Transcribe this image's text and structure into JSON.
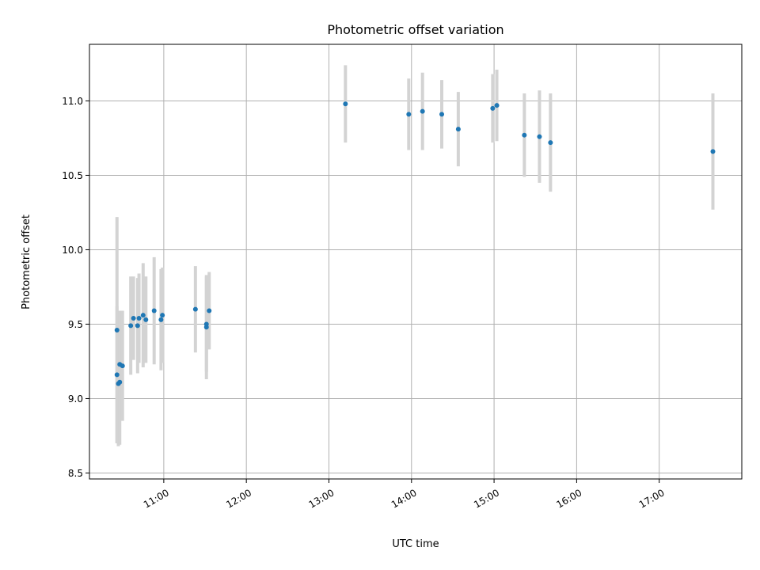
{
  "chart_data": {
    "type": "scatter",
    "title": "Photometric offset variation",
    "xlabel": "UTC time",
    "ylabel": "Photometric offset",
    "x_tick_labels": [
      "11:00",
      "12:00",
      "13:00",
      "14:00",
      "15:00",
      "16:00",
      "17:00"
    ],
    "y_tick_labels": [
      "8.5",
      "9.0",
      "9.5",
      "10.0",
      "10.5",
      "11.0"
    ],
    "xlim": [
      "10:06",
      "18:00"
    ],
    "ylim": [
      8.46,
      11.38
    ],
    "grid": true,
    "marker_color": "#1f77b4",
    "errorbar_color": "#d3d3d3",
    "points": [
      {
        "x": "10:26",
        "y": 9.46,
        "err": 0.76
      },
      {
        "x": "10:26",
        "y": 9.16,
        "err": 0.46
      },
      {
        "x": "10:27",
        "y": 9.1,
        "err": 0.42
      },
      {
        "x": "10:28",
        "y": 9.11,
        "err": 0.42
      },
      {
        "x": "10:28",
        "y": 9.23,
        "err": 0.36
      },
      {
        "x": "10:30",
        "y": 9.22,
        "err": 0.37
      },
      {
        "x": "10:36",
        "y": 9.49,
        "err": 0.33
      },
      {
        "x": "10:38",
        "y": 9.54,
        "err": 0.28
      },
      {
        "x": "10:41",
        "y": 9.49,
        "err": 0.32
      },
      {
        "x": "10:42",
        "y": 9.54,
        "err": 0.3
      },
      {
        "x": "10:45",
        "y": 9.56,
        "err": 0.35
      },
      {
        "x": "10:47",
        "y": 9.53,
        "err": 0.29
      },
      {
        "x": "10:53",
        "y": 9.59,
        "err": 0.36
      },
      {
        "x": "10:58",
        "y": 9.53,
        "err": 0.34
      },
      {
        "x": "10:59",
        "y": 9.56,
        "err": 0.32
      },
      {
        "x": "11:23",
        "y": 9.6,
        "err": 0.29
      },
      {
        "x": "11:31",
        "y": 9.48,
        "err": 0.35
      },
      {
        "x": "11:31",
        "y": 9.5,
        "err": 0.32
      },
      {
        "x": "11:33",
        "y": 9.59,
        "err": 0.26
      },
      {
        "x": "13:12",
        "y": 10.98,
        "err": 0.26
      },
      {
        "x": "13:58",
        "y": 10.91,
        "err": 0.24
      },
      {
        "x": "14:08",
        "y": 10.93,
        "err": 0.26
      },
      {
        "x": "14:22",
        "y": 10.91,
        "err": 0.23
      },
      {
        "x": "14:34",
        "y": 10.81,
        "err": 0.25
      },
      {
        "x": "14:59",
        "y": 10.95,
        "err": 0.23
      },
      {
        "x": "15:02",
        "y": 10.97,
        "err": 0.24
      },
      {
        "x": "15:22",
        "y": 10.77,
        "err": 0.28
      },
      {
        "x": "15:33",
        "y": 10.76,
        "err": 0.31
      },
      {
        "x": "15:41",
        "y": 10.72,
        "err": 0.33
      },
      {
        "x": "17:39",
        "y": 10.66,
        "err": 0.39
      }
    ]
  }
}
